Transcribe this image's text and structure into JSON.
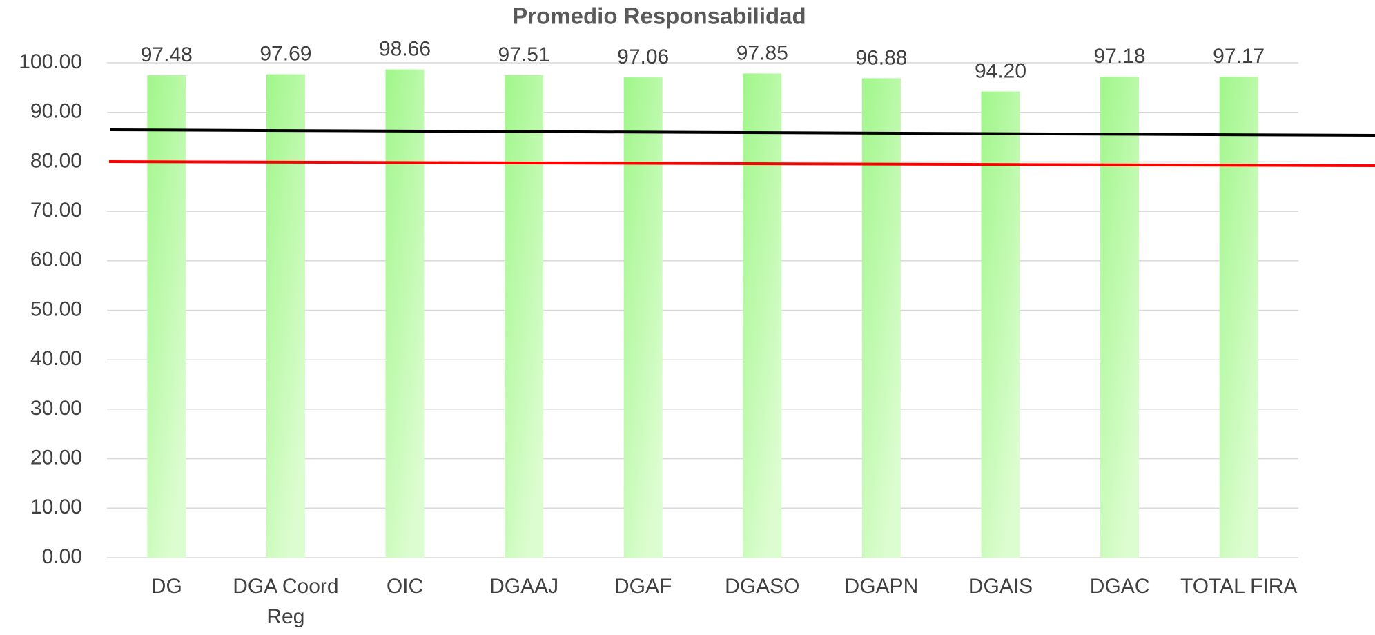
{
  "chart_data": {
    "type": "bar",
    "title": "Promedio Responsabilidad",
    "categories": [
      "DG",
      "DGA Coord Reg",
      "OIC",
      "DGAAJ",
      "DGAF",
      "DGASO",
      "DGAPN",
      "DGAIS",
      "DGAC",
      "TOTAL FIRA"
    ],
    "values": [
      97.48,
      97.69,
      98.66,
      97.51,
      97.06,
      97.85,
      96.88,
      94.2,
      97.18,
      97.17
    ],
    "value_labels": [
      "97.48",
      "97.69",
      "98.66",
      "97.51",
      "97.06",
      "97.85",
      "96.88",
      "94.20",
      "97.18",
      "97.17"
    ],
    "color": "#a8f794",
    "ylim": [
      0,
      100
    ],
    "yticks": [
      {
        "value": 0,
        "label": "0.00"
      },
      {
        "value": 10,
        "label": "10.00"
      },
      {
        "value": 20,
        "label": "20.00"
      },
      {
        "value": 30,
        "label": "30.00"
      },
      {
        "value": 40,
        "label": "40.00"
      },
      {
        "value": 50,
        "label": "50.00"
      },
      {
        "value": 60,
        "label": "60.00"
      },
      {
        "value": 70,
        "label": "70.00"
      },
      {
        "value": 80,
        "label": "80.00"
      },
      {
        "value": 90,
        "label": "90.00"
      },
      {
        "value": 100,
        "label": "100.00"
      }
    ],
    "grid": true
  }
}
